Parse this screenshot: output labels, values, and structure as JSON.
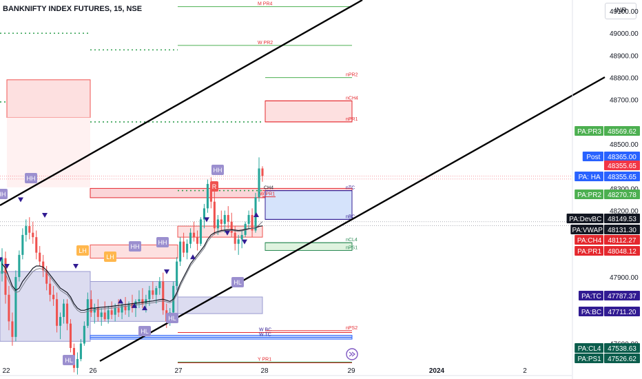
{
  "header": {
    "symbol_title": "BANKNIFTY INDEX FUTURES, 15, NSE",
    "currency": "INR"
  },
  "chart_data": {
    "type": "candlestick",
    "y_axis": {
      "ticks": [
        "49100.00",
        "49000.00",
        "48900.00",
        "48800.00",
        "48700.00",
        "48500.00",
        "48300.00",
        "48200.00",
        "47900.00",
        "47600.00"
      ],
      "range": [
        47440,
        49150
      ]
    },
    "x_axis": {
      "ticks": [
        "22",
        "26",
        "27",
        "28",
        "29",
        "2024",
        "2"
      ]
    },
    "candles": [
      [
        47915,
        48030,
        47880,
        47985
      ],
      [
        47985,
        48015,
        47780,
        47820
      ],
      [
        47820,
        47860,
        47660,
        47700
      ],
      [
        47700,
        47740,
        47590,
        47630
      ],
      [
        47630,
        47930,
        47610,
        47900
      ],
      [
        47900,
        48020,
        47880,
        48000
      ],
      [
        48000,
        48120,
        47980,
        48090
      ],
      [
        48090,
        48160,
        48060,
        48130
      ],
      [
        48130,
        48170,
        48070,
        48100
      ],
      [
        48100,
        48150,
        48050,
        48080
      ],
      [
        48080,
        48110,
        47980,
        48010
      ],
      [
        48010,
        48040,
        47950,
        47970
      ],
      [
        47970,
        48000,
        47900,
        47930
      ],
      [
        47930,
        47950,
        47840,
        47870
      ],
      [
        47870,
        47900,
        47790,
        47820
      ],
      [
        47820,
        47860,
        47770,
        47800
      ],
      [
        47800,
        47830,
        47650,
        47680
      ],
      [
        47680,
        47740,
        47620,
        47720
      ],
      [
        47720,
        47800,
        47690,
        47780
      ],
      [
        47780,
        47800,
        47660,
        47690
      ],
      [
        47690,
        47710,
        47560,
        47580
      ],
      [
        47580,
        47600,
        47470,
        47490
      ],
      [
        47490,
        47560,
        47460,
        47530
      ],
      [
        47530,
        47620,
        47520,
        47600
      ],
      [
        47600,
        47700,
        47590,
        47680
      ],
      [
        47680,
        47830,
        47670,
        47800
      ],
      [
        47800,
        47840,
        47720,
        47740
      ],
      [
        47740,
        47780,
        47690,
        47760
      ],
      [
        47760,
        47800,
        47700,
        47720
      ],
      [
        47720,
        47760,
        47680,
        47740
      ],
      [
        47740,
        47790,
        47700,
        47710
      ],
      [
        47710,
        47770,
        47690,
        47750
      ],
      [
        47750,
        47790,
        47710,
        47730
      ],
      [
        47730,
        47780,
        47700,
        47760
      ],
      [
        47760,
        47800,
        47720,
        47740
      ],
      [
        47740,
        47790,
        47710,
        47770
      ],
      [
        47770,
        47810,
        47730,
        47750
      ],
      [
        47750,
        47790,
        47720,
        47780
      ],
      [
        47780,
        47820,
        47740,
        47760
      ],
      [
        47760,
        47800,
        47720,
        47790
      ],
      [
        47790,
        47840,
        47760,
        47800
      ],
      [
        47800,
        47850,
        47760,
        47780
      ],
      [
        47780,
        47820,
        47740,
        47800
      ],
      [
        47800,
        47860,
        47770,
        47840
      ],
      [
        47840,
        47880,
        47800,
        47820
      ],
      [
        47820,
        47860,
        47780,
        47850
      ],
      [
        47850,
        47900,
        47820,
        47880
      ],
      [
        47880,
        47920,
        47730,
        47750
      ],
      [
        47750,
        47780,
        47670,
        47700
      ],
      [
        47700,
        47760,
        47680,
        47740
      ],
      [
        47740,
        47880,
        47720,
        47860
      ],
      [
        47860,
        47990,
        47840,
        47970
      ],
      [
        47970,
        48080,
        47950,
        48060
      ],
      [
        48060,
        48100,
        47990,
        48010
      ],
      [
        48010,
        48070,
        47980,
        48050
      ],
      [
        48050,
        48120,
        48030,
        48100
      ],
      [
        48100,
        48150,
        48060,
        48080
      ],
      [
        48080,
        48110,
        48020,
        48050
      ],
      [
        48050,
        48170,
        48040,
        48160
      ],
      [
        48160,
        48230,
        48120,
        48210
      ],
      [
        48210,
        48340,
        48190,
        48320
      ],
      [
        48320,
        48350,
        48210,
        48240
      ],
      [
        48240,
        48290,
        48090,
        48120
      ],
      [
        48120,
        48180,
        48090,
        48160
      ],
      [
        48160,
        48200,
        48110,
        48140
      ],
      [
        48140,
        48200,
        48100,
        48180
      ],
      [
        48180,
        48220,
        48120,
        48150
      ],
      [
        48150,
        48190,
        48080,
        48100
      ],
      [
        48100,
        48130,
        48020,
        48050
      ],
      [
        48050,
        48090,
        48000,
        48070
      ],
      [
        48070,
        48110,
        48030,
        48090
      ],
      [
        48090,
        48150,
        48080,
        48140
      ],
      [
        48140,
        48200,
        48120,
        48180
      ],
      [
        48180,
        48210,
        48080,
        48110
      ],
      [
        48110,
        48280,
        48100,
        48260
      ],
      [
        48260,
        48440,
        48240,
        48390
      ],
      [
        48390,
        48400,
        48330,
        48356
      ]
    ],
    "vwap": [
      47960,
      47940,
      47900,
      47860,
      47840,
      47850,
      47880,
      47900,
      47920,
      47940,
      47950,
      47950,
      47945,
      47930,
      47910,
      47890,
      47870,
      47850,
      47840,
      47830,
      47810,
      47780,
      47760,
      47750,
      47750,
      47755,
      47760,
      47760,
      47762,
      47764,
      47765,
      47766,
      47768,
      47770,
      47772,
      47774,
      47776,
      47778,
      47780,
      47782,
      47784,
      47786,
      47788,
      47790,
      47792,
      47795,
      47798,
      47800,
      47795,
      47790,
      47800,
      47830,
      47870,
      47900,
      47930,
      47960,
      47980,
      48000,
      48020,
      48040,
      48070,
      48090,
      48100,
      48105,
      48110,
      48112,
      48114,
      48114,
      48112,
      48110,
      48112,
      48115,
      48118,
      48120,
      48122,
      48128,
      48131
    ],
    "dev_basis": [
      47930,
      47915,
      47880,
      47850,
      47830,
      47835,
      47860,
      47885,
      47905,
      47925,
      47935,
      47938,
      47935,
      47920,
      47900,
      47880,
      47860,
      47840,
      47830,
      47820,
      47800,
      47770,
      47750,
      47740,
      47740,
      47745,
      47750,
      47752,
      47754,
      47756,
      47757,
      47758,
      47760,
      47762,
      47764,
      47766,
      47768,
      47770,
      47772,
      47774,
      47776,
      47778,
      47780,
      47782,
      47784,
      47787,
      47790,
      47792,
      47788,
      47784,
      47792,
      47820,
      47858,
      47890,
      47920,
      47950,
      47970,
      47990,
      48010,
      48030,
      48060,
      48080,
      48095,
      48100,
      48105,
      48108,
      48110,
      48110,
      48108,
      48106,
      48108,
      48112,
      48116,
      48120,
      48124,
      48135,
      48150
    ],
    "level_labels": {
      "m_pr4": "M PR4",
      "w_pr2": "W PR2",
      "npr3": "nPR3",
      "npr2": "nPR2",
      "nch4": "nCH4",
      "npr1": "nPR1",
      "ch4": "CH4",
      "w_pr1": "W PR1",
      "ntc": "nTC",
      "nbc": "nBC",
      "ncl4": "nCL4",
      "nps1": "nPS1",
      "w_bc": "W BC",
      "w_tc": "W TC",
      "nps2": "nPS2",
      "y_pr1": "Y PR1"
    },
    "pivot_tags": [
      {
        "text": "HH",
        "price": 48315,
        "i": 0,
        "kind": "hh"
      },
      {
        "text": "HH",
        "price": 48340,
        "i": 8,
        "kind": "hh"
      },
      {
        "text": "LH",
        "price": 48000,
        "i": 22,
        "kind": "lh"
      },
      {
        "text": "LH",
        "price": 47960,
        "i": 27,
        "kind": "lh"
      },
      {
        "text": "HH",
        "price": 48030,
        "i": 36,
        "kind": "hh"
      },
      {
        "text": "HH",
        "price": 48060,
        "i": 43,
        "kind": "hh"
      },
      {
        "text": "HL",
        "price": 47640,
        "i": 38,
        "kind": "hh"
      },
      {
        "text": "HL",
        "price": 47665,
        "i": 45,
        "kind": "hh"
      },
      {
        "text": "HH",
        "price": 48425,
        "i": 58,
        "kind": "hh"
      },
      {
        "text": "HL",
        "price": 47900,
        "i": 65,
        "kind": "hh"
      },
      {
        "text": "HL",
        "price": 47455,
        "i": 17,
        "kind": "hh"
      },
      {
        "text": "R",
        "price": 48325,
        "i": 56,
        "kind": "r"
      }
    ],
    "price_tags": [
      {
        "name": "PA:PR3",
        "value": "48569.62",
        "price": 48569.62,
        "color": "#4caf50"
      },
      {
        "name": "Post",
        "value": "48365.00",
        "price": 48365,
        "color": "#2962ff"
      },
      {
        "name": "",
        "value": "48355.65",
        "price": 48342,
        "color": "#f23645"
      },
      {
        "name": "PA: HA",
        "value": "48355.65",
        "price": 48322,
        "color": "#2962ff"
      },
      {
        "name": "PA:PR2",
        "value": "48270.78",
        "price": 48270.78,
        "color": "#4caf50"
      },
      {
        "name": "PA:DevBC",
        "value": "48149.53",
        "price": 48149.53,
        "color": "#131722"
      },
      {
        "name": "PA:VWAP",
        "value": "48131.30",
        "price": 48131.3,
        "color": "#131722"
      },
      {
        "name": "PA:CH4",
        "value": "48112.27",
        "price": 48112.27,
        "color": "#e4282e"
      },
      {
        "name": "PA:PR1",
        "value": "48048.12",
        "price": 48048.12,
        "color": "#e4282e"
      },
      {
        "name": "PA:TC",
        "value": "47787.37",
        "price": 47787.37,
        "color": "#311b92"
      },
      {
        "name": "PA:BC",
        "value": "47711.20",
        "price": 47711.2,
        "color": "#311b92"
      },
      {
        "name": "PA:CL4",
        "value": "47538.63",
        "price": 47538.63,
        "color": "#0b5d4c"
      },
      {
        "name": "PA:PS1",
        "value": "47526.62",
        "price": 47517,
        "color": "#0b5d4c"
      }
    ],
    "colors": {
      "up": "#26a69a",
      "down": "#ef5350",
      "vwap": "#131722",
      "channel": "#000000"
    }
  }
}
